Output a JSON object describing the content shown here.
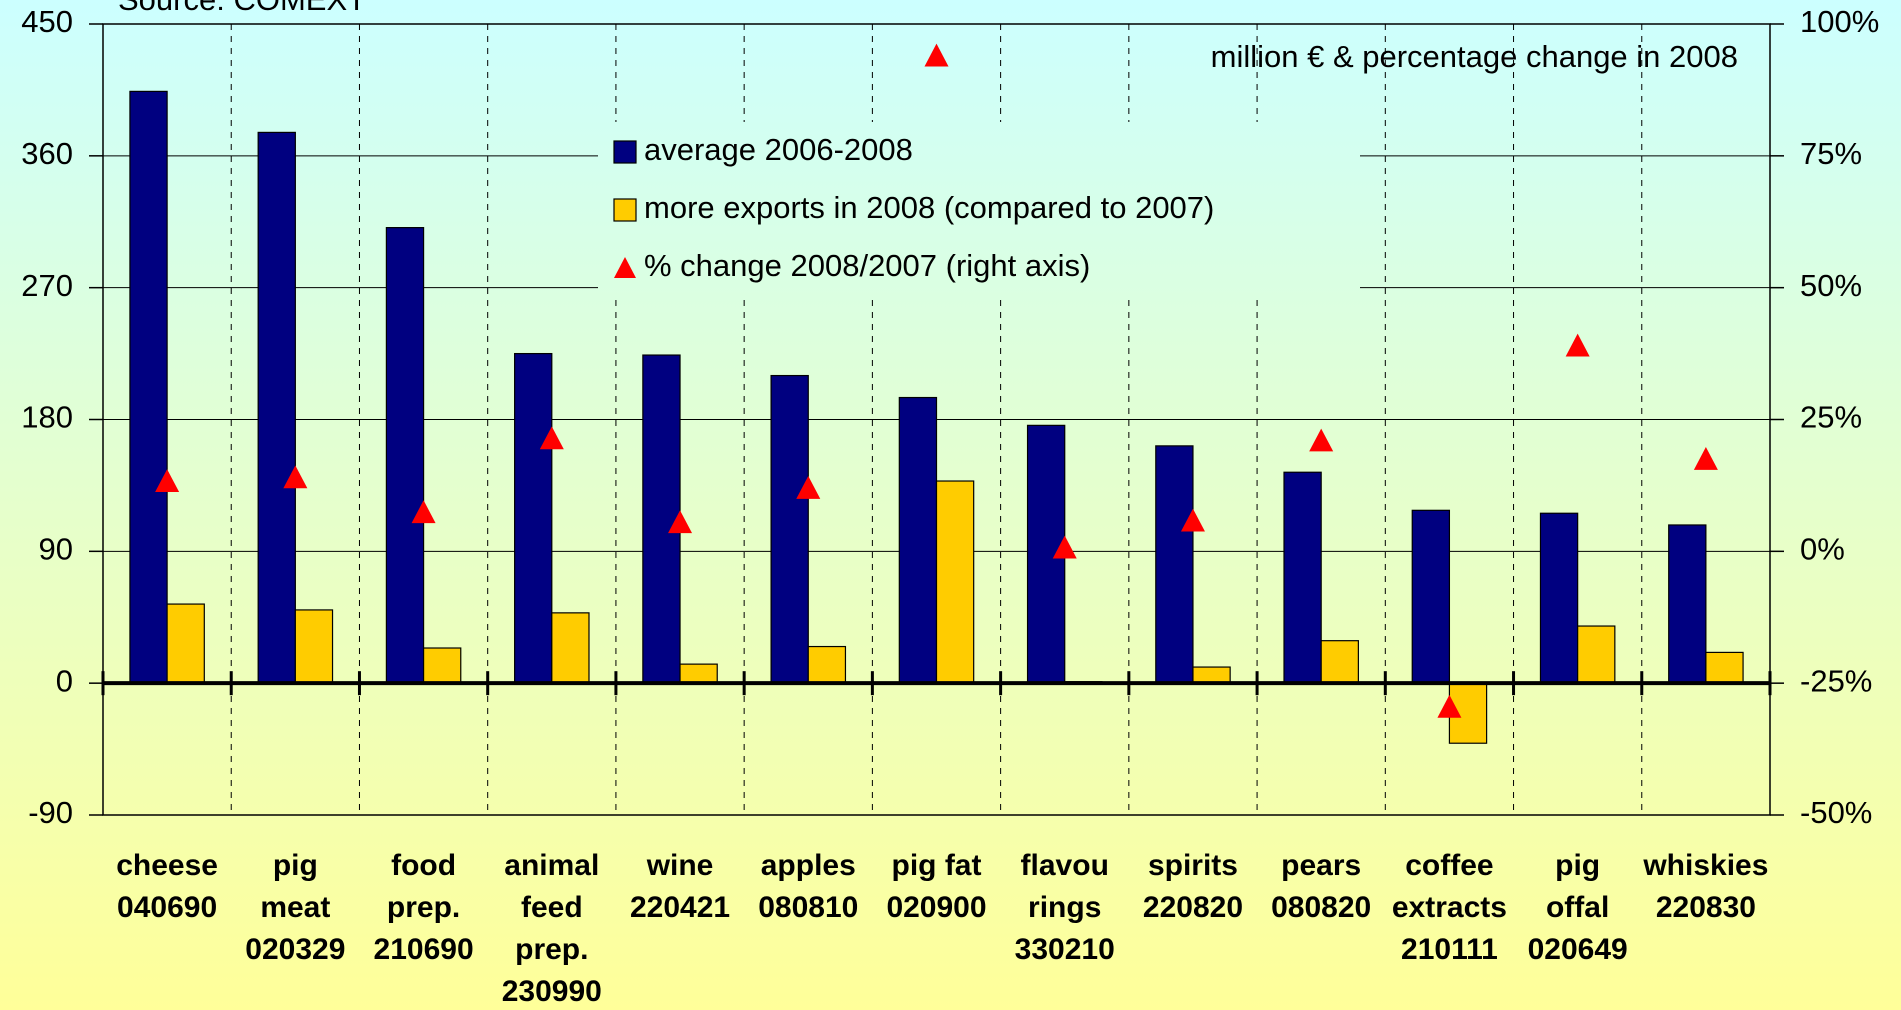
{
  "chart_data": {
    "type": "bar",
    "title": "Source: COMEXT",
    "annotation": "million € & percentage change in 2008",
    "categories": [
      "cheese\n040690",
      "pig\nmeat\n020329",
      "food\nprep.\n210690",
      "animal\nfeed\nprep.\n230990",
      "wine\n220421",
      "apples\n080810",
      "pig fat\n020900",
      "flavou\nrings\n330210",
      "spirits\n220820",
      "pears\n080820",
      "coffee\nextracts\n210111",
      "pig\noffal\n020649",
      "whiskies\n220830"
    ],
    "series": [
      {
        "name": "average 2006-2008",
        "color": "#000080",
        "values": [
          404,
          376,
          311,
          225,
          224,
          210,
          195,
          176,
          162,
          144,
          118,
          116,
          108
        ]
      },
      {
        "name": "more exports in 2008 (compared to 2007)",
        "color": "#ffcc00",
        "values": [
          54,
          50,
          24,
          48,
          13,
          25,
          138,
          1,
          11,
          29,
          -41,
          39,
          21
        ]
      },
      {
        "name": "% change 2008/2007 (right axis)",
        "color": "#ff0000",
        "axis": "y2",
        "values": [
          13.3,
          14,
          7.4,
          21.4,
          5.5,
          12,
          94,
          0.7,
          5.8,
          21,
          -29.5,
          39,
          17.5
        ]
      }
    ],
    "ylim": [
      -90,
      450
    ],
    "yticks": [
      -90,
      0,
      90,
      180,
      270,
      360,
      450
    ],
    "y2lim": [
      -50,
      100
    ],
    "y2ticks": [
      {
        "value": -50,
        "label": "-50%"
      },
      {
        "value": -25,
        "label": "-25%"
      },
      {
        "value": 0,
        "label": "0%"
      },
      {
        "value": 25,
        "label": "25%"
      },
      {
        "value": 50,
        "label": "50%"
      },
      {
        "value": 75,
        "label": "75%"
      },
      {
        "value": 100,
        "label": "100%"
      }
    ],
    "grid": true
  }
}
